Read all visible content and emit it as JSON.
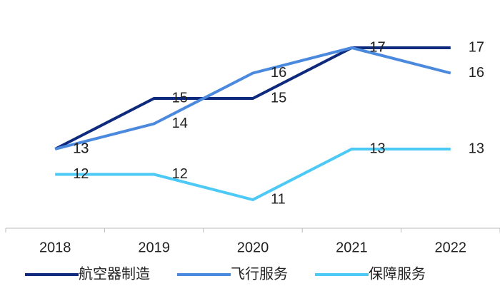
{
  "chart_data": {
    "type": "line",
    "categories": [
      "2018",
      "2019",
      "2020",
      "2021",
      "2022"
    ],
    "series": [
      {
        "name": "航空器制造",
        "color": "#0e2a7c",
        "values": [
          13,
          15,
          15,
          17,
          17
        ]
      },
      {
        "name": "飞行服务",
        "color": "#4a89dd",
        "values": [
          13,
          14,
          16,
          17,
          16
        ]
      },
      {
        "name": "保障服务",
        "color": "#4dc9f6",
        "values": [
          12,
          12,
          11,
          13,
          13
        ]
      }
    ],
    "ylim": [
      10,
      18
    ]
  }
}
